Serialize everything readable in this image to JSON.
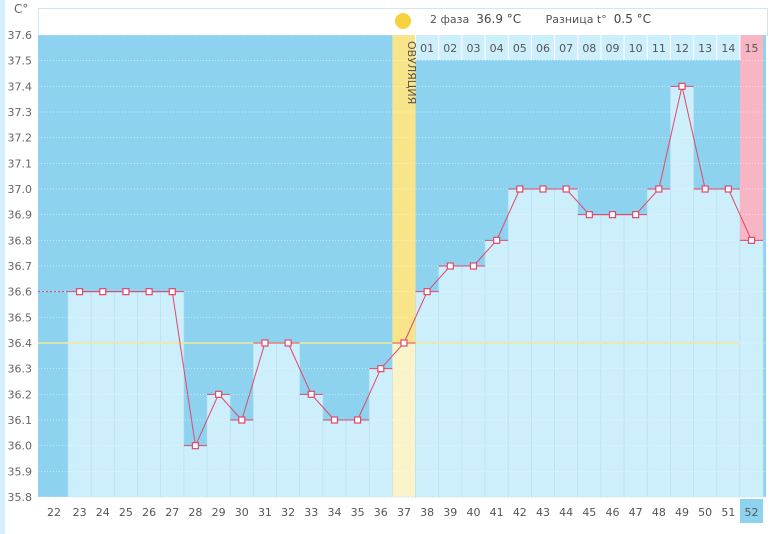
{
  "header": {
    "unit": "C°",
    "phase_label": "2 фаза",
    "phase_value": "36.9 °C",
    "diff_label": "Разница t°",
    "diff_value": "0.5 °C",
    "ovulation_label": "ОВУЛЯЦИЯ"
  },
  "colors": {
    "dark": "#8dd3ef",
    "light": "#cdeefb",
    "ovulation": "#f8e58a",
    "last": "#f8b5c4",
    "line": "#e0486a",
    "coverline": "#f2e9a0"
  },
  "chart_data": {
    "type": "line",
    "ylim": [
      35.8,
      37.6
    ],
    "yticks": [
      "37.6",
      "37.5",
      "37.4",
      "37.3",
      "37.2",
      "37.1",
      "37.0",
      "36.9",
      "36.8",
      "36.7",
      "36.6",
      "36.5",
      "36.4",
      "36.3",
      "36.2",
      "36.1",
      "36.0",
      "35.9",
      "35.8"
    ],
    "first_day_label": "22",
    "days": [
      "23",
      "24",
      "25",
      "26",
      "27",
      "28",
      "29",
      "30",
      "31",
      "32",
      "33",
      "34",
      "35",
      "36",
      "37",
      "38",
      "39",
      "40",
      "41",
      "42",
      "43",
      "44",
      "45",
      "46",
      "47",
      "48",
      "49",
      "50",
      "51",
      "52"
    ],
    "values": [
      36.6,
      36.6,
      36.6,
      36.6,
      36.6,
      36.0,
      36.2,
      36.1,
      36.4,
      36.4,
      36.2,
      36.1,
      36.1,
      36.3,
      36.4,
      36.6,
      36.7,
      36.7,
      36.8,
      37.0,
      37.0,
      37.0,
      36.9,
      36.9,
      36.9,
      37.0,
      37.4,
      37.0,
      37.0,
      36.8
    ],
    "ovulation_day": "37",
    "phase2_days": [
      "01",
      "02",
      "03",
      "04",
      "05",
      "06",
      "07",
      "08",
      "09",
      "10",
      "11",
      "12",
      "13",
      "14",
      "15"
    ],
    "coverline": 36.4
  }
}
